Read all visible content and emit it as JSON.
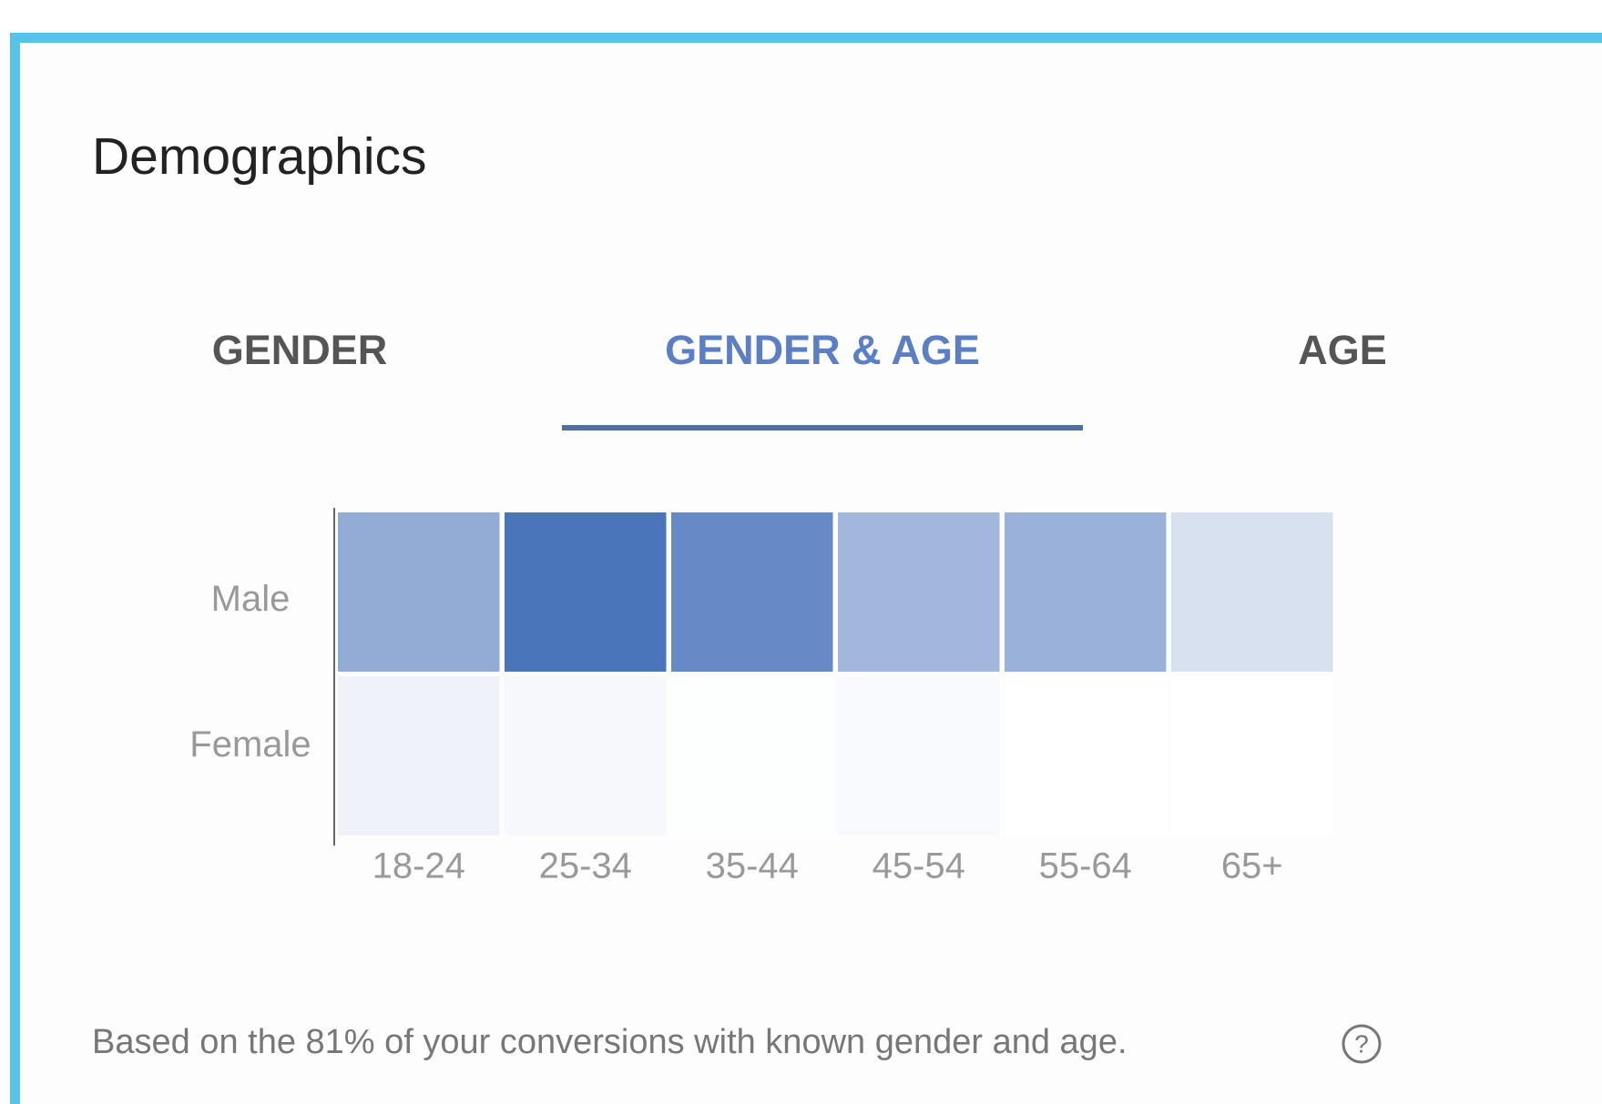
{
  "header": {
    "title": "Demographics"
  },
  "tabs": [
    "GENDER",
    "GENDER & AGE",
    "AGE"
  ],
  "active_tab": 1,
  "chart_data": {
    "type": "heatmap",
    "rows": [
      "Male",
      "Female"
    ],
    "categories": [
      "18-24",
      "25-34",
      "35-44",
      "45-54",
      "55-64",
      "65+"
    ],
    "values": [
      [
        60,
        100,
        85,
        52,
        56,
        22
      ],
      [
        9,
        5,
        1,
        4,
        0,
        0
      ]
    ],
    "color": "#4a75bb"
  },
  "footnote": {
    "text": "Based on the 81% of your conversions with known gender and age.",
    "help_icon": "?"
  }
}
